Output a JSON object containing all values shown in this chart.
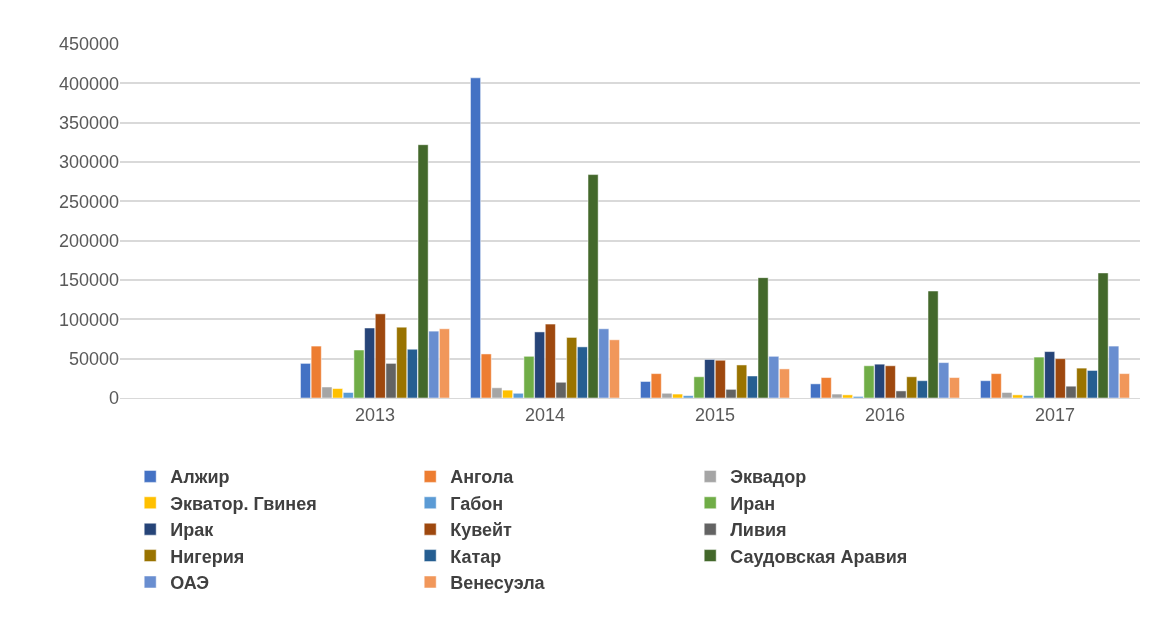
{
  "chart_data": {
    "type": "bar",
    "categories": [
      null,
      "2013",
      "2014",
      "2015",
      "2016",
      "2017"
    ],
    "ylim": [
      0,
      450000
    ],
    "yticks": [
      0,
      50000,
      100000,
      150000,
      200000,
      250000,
      300000,
      350000,
      400000,
      450000
    ],
    "grid": "y",
    "legend": "bottom",
    "series": [
      {
        "name": "Алжир",
        "color": "#4472c4",
        "values": [
          null,
          44000,
          407000,
          21000,
          18000,
          22000
        ]
      },
      {
        "name": "Ангола",
        "color": "#ed7d31",
        "values": [
          null,
          66000,
          56000,
          31000,
          26000,
          31000
        ]
      },
      {
        "name": "Эквадор",
        "color": "#a5a5a5",
        "values": [
          null,
          14000,
          13000,
          6000,
          5000,
          7000
        ]
      },
      {
        "name": "Экватор. Гвинея",
        "color": "#ffc000",
        "values": [
          null,
          12000,
          10000,
          5000,
          4000,
          4000
        ]
      },
      {
        "name": "Габон",
        "color": "#5b9bd5",
        "values": [
          null,
          7000,
          6000,
          3000,
          2000,
          3000
        ]
      },
      {
        "name": "Иран",
        "color": "#70ad47",
        "values": [
          null,
          61000,
          53000,
          27000,
          41000,
          52000
        ]
      },
      {
        "name": "Ирак",
        "color": "#264478",
        "values": [
          null,
          89000,
          84000,
          49000,
          43000,
          59000
        ]
      },
      {
        "name": "Кувейт",
        "color": "#9e480e",
        "values": [
          null,
          107000,
          94000,
          48000,
          41000,
          50000
        ]
      },
      {
        "name": "Ливия",
        "color": "#636363",
        "values": [
          null,
          44000,
          20000,
          11000,
          9000,
          15000
        ]
      },
      {
        "name": "Нигерия",
        "color": "#997300",
        "values": [
          null,
          90000,
          77000,
          42000,
          27000,
          38000
        ]
      },
      {
        "name": "Катар",
        "color": "#255e91",
        "values": [
          null,
          62000,
          65000,
          28000,
          22000,
          35000
        ]
      },
      {
        "name": "Саудовская Аравия",
        "color": "#43682b",
        "values": [
          null,
          322000,
          284000,
          153000,
          136000,
          159000
        ]
      },
      {
        "name": "ОАЭ",
        "color": "#698ed0",
        "values": [
          null,
          85000,
          88000,
          53000,
          45000,
          66000
        ]
      },
      {
        "name": "Венесуэла",
        "color": "#f1975a",
        "values": [
          null,
          88000,
          74000,
          37000,
          26000,
          31000
        ]
      }
    ]
  }
}
